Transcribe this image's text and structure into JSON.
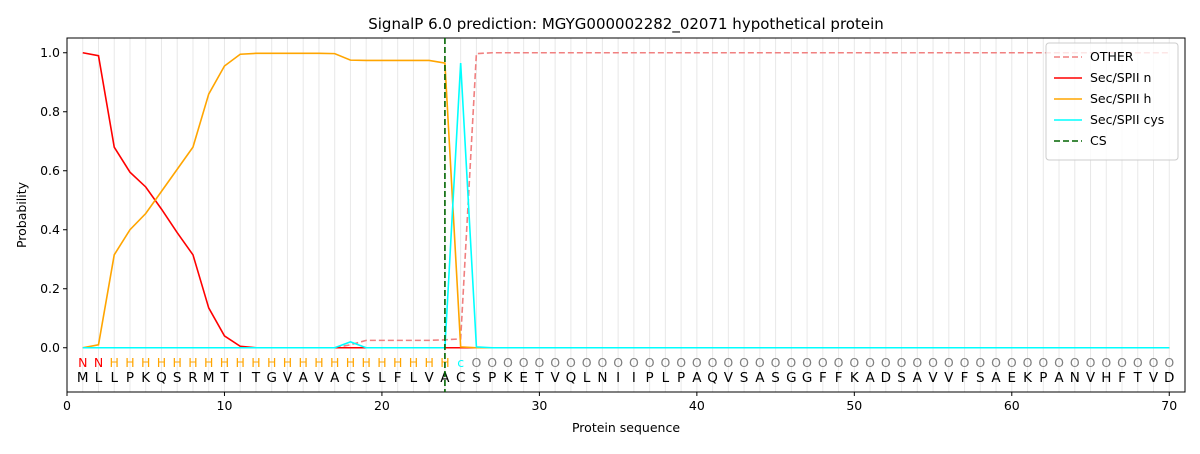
{
  "chart_data": {
    "type": "line",
    "title": "SignalP 6.0 prediction: MGYG000002282_02071 hypothetical protein",
    "xlabel": "Protein sequence",
    "ylabel": "Probability",
    "xlim": [
      0,
      71
    ],
    "ylim": [
      -0.15,
      1.05
    ],
    "xticks": [
      0,
      10,
      20,
      30,
      40,
      50,
      60,
      70
    ],
    "yticks": [
      {
        "value": 0,
        "label": "0.0"
      },
      {
        "value": 0.2,
        "label": "0.2"
      },
      {
        "value": 0.4,
        "label": "0.4"
      },
      {
        "value": 0.6,
        "label": "0.6"
      },
      {
        "value": 0.8,
        "label": "0.8"
      },
      {
        "value": 1,
        "label": "1.0"
      }
    ],
    "legend": "upper right",
    "x": [
      1,
      2,
      3,
      4,
      5,
      6,
      7,
      8,
      9,
      10,
      11,
      12,
      13,
      14,
      15,
      16,
      17,
      18,
      19,
      20,
      21,
      22,
      23,
      24,
      25,
      26,
      27,
      28,
      29,
      30,
      31,
      32,
      33,
      34,
      35,
      36,
      37,
      38,
      39,
      40,
      41,
      42,
      43,
      44,
      45,
      46,
      47,
      48,
      49,
      50,
      51,
      52,
      53,
      54,
      55,
      56,
      57,
      58,
      59,
      60,
      61,
      62,
      63,
      64,
      65,
      66,
      67,
      68,
      69,
      70
    ],
    "sequence": [
      "M",
      "L",
      "L",
      "P",
      "K",
      "Q",
      "S",
      "R",
      "M",
      "T",
      "I",
      "T",
      "G",
      "V",
      "A",
      "V",
      "A",
      "C",
      "S",
      "L",
      "F",
      "L",
      "V",
      "A",
      "C",
      "S",
      "P",
      "K",
      "E",
      "T",
      "V",
      "Q",
      "L",
      "N",
      "I",
      "I",
      "P",
      "L",
      "P",
      "A",
      "Q",
      "V",
      "S",
      "A",
      "S",
      "G",
      "G",
      "F",
      "F",
      "K",
      "A",
      "D",
      "S",
      "A",
      "V",
      "V",
      "F",
      "S",
      "A",
      "E",
      "K",
      "P",
      "A",
      "N",
      "V",
      "H",
      "F",
      "T",
      "V",
      "D"
    ],
    "regions": [
      "N",
      "N",
      "H",
      "H",
      "H",
      "H",
      "H",
      "H",
      "H",
      "H",
      "H",
      "H",
      "H",
      "H",
      "H",
      "H",
      "H",
      "H",
      "H",
      "H",
      "H",
      "H",
      "H",
      "H",
      "c",
      "O",
      "O",
      "O",
      "O",
      "O",
      "O",
      "O",
      "O",
      "O",
      "O",
      "O",
      "O",
      "O",
      "O",
      "O",
      "O",
      "O",
      "O",
      "O",
      "O",
      "O",
      "O",
      "O",
      "O",
      "O",
      "O",
      "O",
      "O",
      "O",
      "O",
      "O",
      "O",
      "O",
      "O",
      "O",
      "O",
      "O",
      "O",
      "O",
      "O",
      "O",
      "O",
      "O",
      "O",
      "O"
    ],
    "region_colors": {
      "N": "#ff0000",
      "H": "#ffa500",
      "c": "#00ffff",
      "O": "#808080"
    },
    "series": [
      {
        "name": "OTHER",
        "color": "#f08080",
        "dashed": true,
        "values": [
          0,
          0,
          0,
          0,
          0,
          0,
          0,
          0,
          0,
          0,
          0,
          0,
          0,
          0,
          0,
          0,
          0,
          0.01,
          0.025,
          0.025,
          0.025,
          0.025,
          0.025,
          0.027,
          0.03,
          0.997,
          1,
          1,
          1,
          1,
          1,
          1,
          1,
          1,
          1,
          1,
          1,
          1,
          1,
          1,
          1,
          1,
          1,
          1,
          1,
          1,
          1,
          1,
          1,
          1,
          1,
          1,
          1,
          1,
          1,
          1,
          1,
          1,
          1,
          1,
          1,
          1,
          1,
          1,
          1,
          1,
          1,
          1,
          1,
          1
        ]
      },
      {
        "name": "Sec/SPII n",
        "color": "#ff0000",
        "dashed": false,
        "values": [
          1,
          0.99,
          0.68,
          0.595,
          0.545,
          0.47,
          0.39,
          0.315,
          0.135,
          0.04,
          0.005,
          0,
          0,
          0,
          0,
          0,
          0,
          0,
          0,
          0,
          0,
          0,
          0,
          0,
          0,
          0,
          0,
          0,
          0,
          0,
          0,
          0,
          0,
          0,
          0,
          0,
          0,
          0,
          0,
          0,
          0,
          0,
          0,
          0,
          0,
          0,
          0,
          0,
          0,
          0,
          0,
          0,
          0,
          0,
          0,
          0,
          0,
          0,
          0,
          0,
          0,
          0,
          0,
          0,
          0,
          0,
          0,
          0,
          0,
          0
        ]
      },
      {
        "name": "Sec/SPII h",
        "color": "#ffa500",
        "dashed": false,
        "values": [
          0,
          0.01,
          0.315,
          0.4,
          0.455,
          0.53,
          0.605,
          0.68,
          0.86,
          0.955,
          0.995,
          0.998,
          0.998,
          0.998,
          0.998,
          0.998,
          0.997,
          0.975,
          0.974,
          0.974,
          0.974,
          0.974,
          0.974,
          0.965,
          0.003,
          0,
          0,
          0,
          0,
          0,
          0,
          0,
          0,
          0,
          0,
          0,
          0,
          0,
          0,
          0,
          0,
          0,
          0,
          0,
          0,
          0,
          0,
          0,
          0,
          0,
          0,
          0,
          0,
          0,
          0,
          0,
          0,
          0,
          0,
          0,
          0,
          0,
          0,
          0,
          0,
          0,
          0,
          0,
          0,
          0
        ]
      },
      {
        "name": "Sec/SPII cys",
        "color": "#00ffff",
        "dashed": false,
        "values": [
          0,
          0,
          0,
          0,
          0,
          0,
          0,
          0,
          0,
          0,
          0,
          0,
          0,
          0,
          0,
          0,
          0,
          0.02,
          0,
          0,
          0,
          0,
          0,
          0,
          0.965,
          0.003,
          0,
          0,
          0,
          0,
          0,
          0,
          0,
          0,
          0,
          0,
          0,
          0,
          0,
          0,
          0,
          0,
          0,
          0,
          0,
          0,
          0,
          0,
          0,
          0,
          0,
          0,
          0,
          0,
          0,
          0,
          0,
          0,
          0,
          0,
          0,
          0,
          0,
          0,
          0,
          0,
          0,
          0,
          0,
          0
        ]
      }
    ],
    "cs": {
      "name": "CS",
      "color": "#006400",
      "x": 24
    }
  }
}
